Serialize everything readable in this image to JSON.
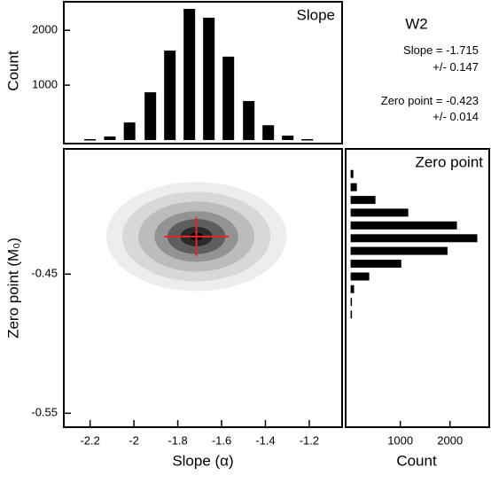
{
  "chart_data": [
    {
      "type": "bar",
      "title": "Slope",
      "ylabel": "Count",
      "x": [
        -2.2,
        -2.11,
        -2.02,
        -1.925,
        -1.836,
        -1.747,
        -1.658,
        -1.569,
        -1.476,
        -1.387,
        -1.298,
        -1.209
      ],
      "values": [
        16,
        65,
        320,
        870,
        1630,
        2390,
        2230,
        1520,
        710,
        270,
        80,
        16
      ],
      "color": "#000000",
      "xlim": [
        -2.32,
        -1.05
      ],
      "ylim": [
        -65,
        2520
      ],
      "yticks": [
        1000,
        2000
      ]
    },
    {
      "type": "contour",
      "xlabel": "Slope (α)",
      "ylabel": "Zero point (M₀)",
      "xlim": [
        -2.32,
        -1.05
      ],
      "ylim": [
        -0.56,
        -0.36
      ],
      "xticks": [
        -2.2,
        -2.0,
        -1.8,
        -1.6,
        -1.4,
        -1.2
      ],
      "yticks": [
        -0.55,
        -0.45
      ],
      "colors": [
        "#ededed",
        "#d8d8d8",
        "#bcbcbc",
        "#939393",
        "#5e5e5e",
        "#2a2a2a",
        "#000000"
      ],
      "cross_color": "#e8242b"
    },
    {
      "type": "barh",
      "title": "Zero point",
      "xlabel": "Count",
      "y": [
        -0.378,
        -0.3875,
        -0.3967,
        -0.4058,
        -0.415,
        -0.4242,
        -0.4333,
        -0.4425,
        -0.4517,
        -0.4608,
        -0.47,
        -0.479
      ],
      "values": [
        55,
        125,
        500,
        1160,
        2140,
        2550,
        1950,
        1020,
        375,
        70,
        18,
        8
      ],
      "color": "#000000",
      "xlim": [
        -100,
        2790
      ],
      "ylim": [
        -0.56,
        -0.36
      ],
      "xticks": [
        1000,
        2000
      ]
    }
  ],
  "estimate": {
    "title": "W2",
    "slope": {
      "label": "Slope =",
      "value": -1.715,
      "error_label": "+/-",
      "error": 0.147
    },
    "zero_point": {
      "label": "Zero point =",
      "value": -0.423,
      "error_label": "+/-",
      "error": 0.014
    }
  }
}
